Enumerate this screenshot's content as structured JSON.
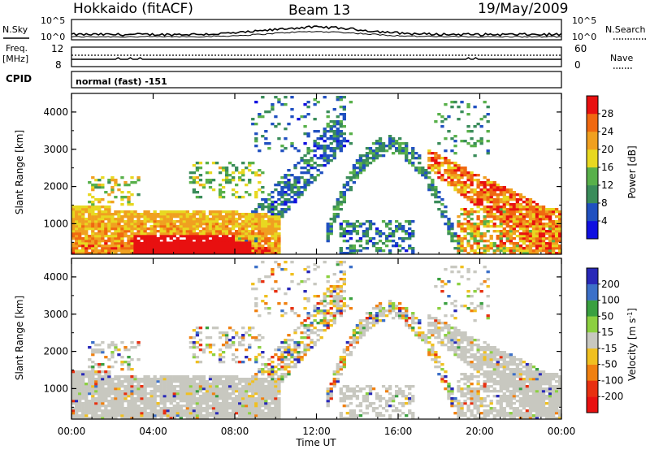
{
  "header": {
    "station": "Hokkaido (fitACF)",
    "beam": "Beam 13",
    "date": "19/May/2009"
  },
  "noise_panel": {
    "left_label": "N.Sky",
    "right_label": "N.Search",
    "left_ticks": [
      "10^5",
      "10^0"
    ],
    "right_ticks": [
      "10^5",
      "10^0"
    ]
  },
  "freq_panel": {
    "left_label_1": "Freq.",
    "left_label_2": "[MHz]",
    "left_ticks": [
      "12",
      "8"
    ],
    "right_label": "Nave",
    "right_ticks": [
      "60",
      "0"
    ]
  },
  "cpid_panel": {
    "label": "CPID",
    "value": "normal (fast) -151"
  },
  "x_axis": {
    "label": "Time UT",
    "ticks": [
      "00:00",
      "04:00",
      "08:00",
      "12:00",
      "16:00",
      "20:00",
      "00:00"
    ]
  },
  "chart_data": [
    {
      "type": "heatmap",
      "name": "power",
      "ylabel": "Slant Range [km]",
      "ylim": [
        180,
        4500
      ],
      "yticks": [
        1000,
        2000,
        3000,
        4000
      ],
      "xlim_hours": [
        0,
        24
      ],
      "colorbar": {
        "label": "Power [dB]",
        "ticks": [
          "4",
          "8",
          "12",
          "16",
          "20",
          "24",
          "28"
        ],
        "colors": [
          "#1010e0",
          "#2050c0",
          "#3a8c5a",
          "#58b04a",
          "#e8d820",
          "#f0a020",
          "#f06810",
          "#e81010"
        ]
      }
    },
    {
      "type": "heatmap",
      "name": "velocity",
      "ylabel": "Slant Range [km]",
      "ylim": [
        180,
        4500
      ],
      "yticks": [
        1000,
        2000,
        3000,
        4000
      ],
      "xlim_hours": [
        0,
        24
      ],
      "colorbar": {
        "label": "Velocity [m s^-1]",
        "ticks": [
          "200",
          "100",
          "50",
          "15",
          "-15",
          "-50",
          "-100",
          "-200"
        ],
        "colors": [
          "#2828b8",
          "#3c70c8",
          "#3aa040",
          "#8cd040",
          "#c8c8c0",
          "#f0c020",
          "#f08010",
          "#e83010",
          "#e81010"
        ]
      }
    }
  ]
}
